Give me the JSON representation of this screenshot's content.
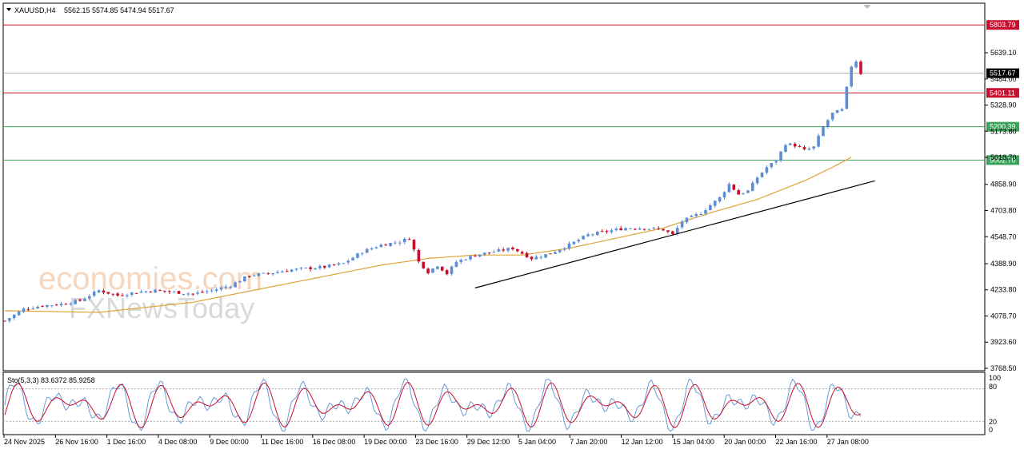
{
  "header": {
    "symbol": "XAUUSD,H4",
    "ohlc": "5562.15 5574.85 5474.94 5517.67"
  },
  "watermark": {
    "brand1": "economies.com",
    "brand2": "FXNewsToday"
  },
  "chart_data": {
    "type": "candlestick",
    "price_axis": {
      "ticks": [
        "5639.10",
        "5484.00",
        "5328.90",
        "5173.80",
        "5018.70",
        "4858.90",
        "4703.80",
        "4548.70",
        "4388.90",
        "4233.80",
        "4078.70",
        "3923.60",
        "3768.50"
      ],
      "range": [
        3768.5,
        5880
      ]
    },
    "time_axis": {
      "labels": [
        "24 Nov 2025",
        "26 Nov 16:00",
        "1 Dec 16:00",
        "4 Dec 08:00",
        "9 Dec 00:00",
        "11 Dec 16:00",
        "16 Dec 08:00",
        "19 Dec 00:00",
        "23 Dec 16:00",
        "29 Dec 12:00",
        "5 Jan 04:00",
        "7 Jan 20:00",
        "12 Jan 12:00",
        "15 Jan 04:00",
        "20 Jan 00:00",
        "22 Jan 16:00",
        "27 Jan 08:00"
      ]
    },
    "horizontal_levels": [
      {
        "value": "5803.79",
        "color": "#c8102e"
      },
      {
        "value": "5401.11",
        "color": "#c8102e"
      },
      {
        "value": "5200.39",
        "color": "#3aa35a"
      },
      {
        "value": "5002.70",
        "color": "#3aa35a"
      }
    ],
    "current_price": "5517.67",
    "close_path": [
      [
        0,
        4050
      ],
      [
        4,
        4120
      ],
      [
        8,
        4140
      ],
      [
        12,
        4150
      ],
      [
        16,
        4170
      ],
      [
        20,
        4230
      ],
      [
        24,
        4200
      ],
      [
        28,
        4220
      ],
      [
        32,
        4230
      ],
      [
        36,
        4220
      ],
      [
        40,
        4210
      ],
      [
        44,
        4230
      ],
      [
        48,
        4260
      ],
      [
        52,
        4320
      ],
      [
        56,
        4330
      ],
      [
        60,
        4350
      ],
      [
        64,
        4360
      ],
      [
        68,
        4370
      ],
      [
        72,
        4390
      ],
      [
        76,
        4460
      ],
      [
        80,
        4500
      ],
      [
        84,
        4520
      ],
      [
        86,
        4540
      ],
      [
        88,
        4400
      ],
      [
        90,
        4340
      ],
      [
        92,
        4380
      ],
      [
        94,
        4330
      ],
      [
        96,
        4400
      ],
      [
        100,
        4440
      ],
      [
        104,
        4460
      ],
      [
        108,
        4480
      ],
      [
        112,
        4420
      ],
      [
        116,
        4450
      ],
      [
        120,
        4500
      ],
      [
        124,
        4560
      ],
      [
        128,
        4580
      ],
      [
        132,
        4600
      ],
      [
        136,
        4600
      ],
      [
        140,
        4590
      ],
      [
        142,
        4560
      ],
      [
        144,
        4640
      ],
      [
        148,
        4690
      ],
      [
        152,
        4780
      ],
      [
        154,
        4860
      ],
      [
        156,
        4800
      ],
      [
        158,
        4820
      ],
      [
        160,
        4900
      ],
      [
        162,
        4960
      ],
      [
        164,
        5000
      ],
      [
        166,
        5100
      ],
      [
        168,
        5090
      ],
      [
        170,
        5060
      ],
      [
        172,
        5080
      ],
      [
        174,
        5200
      ],
      [
        176,
        5280
      ],
      [
        178,
        5300
      ],
      [
        180,
        5560
      ],
      [
        181,
        5590
      ],
      [
        182,
        5518
      ]
    ],
    "moving_average": [
      [
        0,
        4110
      ],
      [
        20,
        4100
      ],
      [
        40,
        4160
      ],
      [
        60,
        4270
      ],
      [
        80,
        4380
      ],
      [
        90,
        4420
      ],
      [
        100,
        4440
      ],
      [
        110,
        4440
      ],
      [
        120,
        4480
      ],
      [
        130,
        4540
      ],
      [
        140,
        4600
      ],
      [
        150,
        4690
      ],
      [
        160,
        4770
      ],
      [
        170,
        4880
      ],
      [
        176,
        4960
      ],
      [
        180,
        5020
      ]
    ],
    "trendline": {
      "from": [
        100,
        4245
      ],
      "to": [
        185,
        4880
      ]
    },
    "oscillator": {
      "label": "Sto(5,3,3) 83.6372 85.9258",
      "levels": [
        "100",
        "80",
        "20",
        "0"
      ]
    }
  }
}
